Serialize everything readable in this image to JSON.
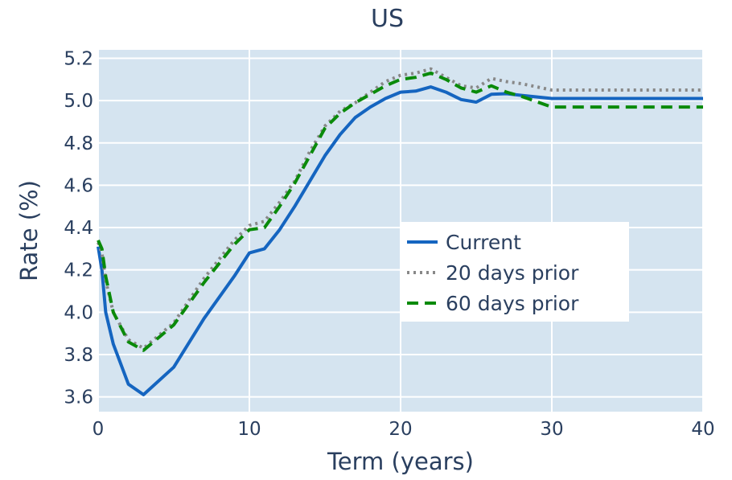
{
  "chart_data": {
    "type": "line",
    "title": "US",
    "xlabel": "Term (years)",
    "ylabel": "Rate (%)",
    "xlim": [
      0,
      40
    ],
    "ylim": [
      3.53,
      5.24
    ],
    "x_ticks": [
      0,
      10,
      20,
      30,
      40
    ],
    "x_tick_labels": [
      "0",
      "10",
      "20",
      "30",
      "40"
    ],
    "y_ticks": [
      3.6,
      3.8,
      4.0,
      4.2,
      4.4,
      4.6,
      4.8,
      5.0,
      5.2
    ],
    "y_tick_labels": [
      "3.6",
      "3.8",
      "4.0",
      "4.2",
      "4.4",
      "4.6",
      "4.8",
      "5.0",
      "5.2"
    ],
    "grid": true,
    "legend_position": "center-right",
    "plot_background": "#d5e4f0",
    "series": [
      {
        "name": "Current",
        "color": "#1565c0",
        "dash": "solid",
        "x": [
          0,
          0.25,
          0.5,
          1,
          2,
          3,
          5,
          7,
          9,
          10,
          11,
          12,
          13,
          14,
          15,
          16,
          17,
          18,
          19,
          20,
          21,
          22,
          23,
          24,
          25,
          26,
          27,
          28,
          30,
          35,
          40
        ],
        "y": [
          4.31,
          4.2,
          4.0,
          3.85,
          3.66,
          3.61,
          3.74,
          3.97,
          4.17,
          4.28,
          4.3,
          4.39,
          4.5,
          4.62,
          4.74,
          4.84,
          4.92,
          4.97,
          5.01,
          5.04,
          5.045,
          5.065,
          5.04,
          5.005,
          4.993,
          5.03,
          5.033,
          5.025,
          5.01,
          5.01,
          5.01
        ]
      },
      {
        "name": "20 days prior",
        "color": "#888888",
        "dash": "dotted",
        "x": [
          0,
          0.25,
          0.5,
          1,
          2,
          3,
          5,
          7,
          9,
          10,
          11,
          12,
          13,
          14,
          15,
          16,
          17,
          18,
          19,
          20,
          21,
          22,
          23,
          24,
          25,
          26,
          27,
          28,
          30,
          35,
          40
        ],
        "y": [
          4.33,
          4.28,
          4.15,
          4.0,
          3.87,
          3.83,
          3.95,
          4.16,
          4.34,
          4.41,
          4.43,
          4.52,
          4.62,
          4.76,
          4.88,
          4.95,
          4.99,
          5.04,
          5.09,
          5.12,
          5.13,
          5.15,
          5.11,
          5.07,
          5.06,
          5.105,
          5.09,
          5.08,
          5.05,
          5.05,
          5.05
        ]
      },
      {
        "name": "60 days prior",
        "color": "#0a8a0a",
        "dash": "dashed",
        "x": [
          0,
          0.25,
          0.5,
          1,
          2,
          3,
          5,
          7,
          9,
          10,
          11,
          12,
          13,
          14,
          15,
          16,
          17,
          18,
          19,
          20,
          21,
          22,
          23,
          24,
          25,
          26,
          27,
          28,
          30,
          35,
          40
        ],
        "y": [
          4.34,
          4.3,
          4.17,
          4.0,
          3.86,
          3.82,
          3.94,
          4.14,
          4.32,
          4.39,
          4.4,
          4.5,
          4.61,
          4.74,
          4.87,
          4.94,
          4.99,
          5.03,
          5.07,
          5.1,
          5.11,
          5.13,
          5.1,
          5.06,
          5.04,
          5.07,
          5.04,
          5.02,
          4.97,
          4.97,
          4.97
        ]
      }
    ]
  }
}
